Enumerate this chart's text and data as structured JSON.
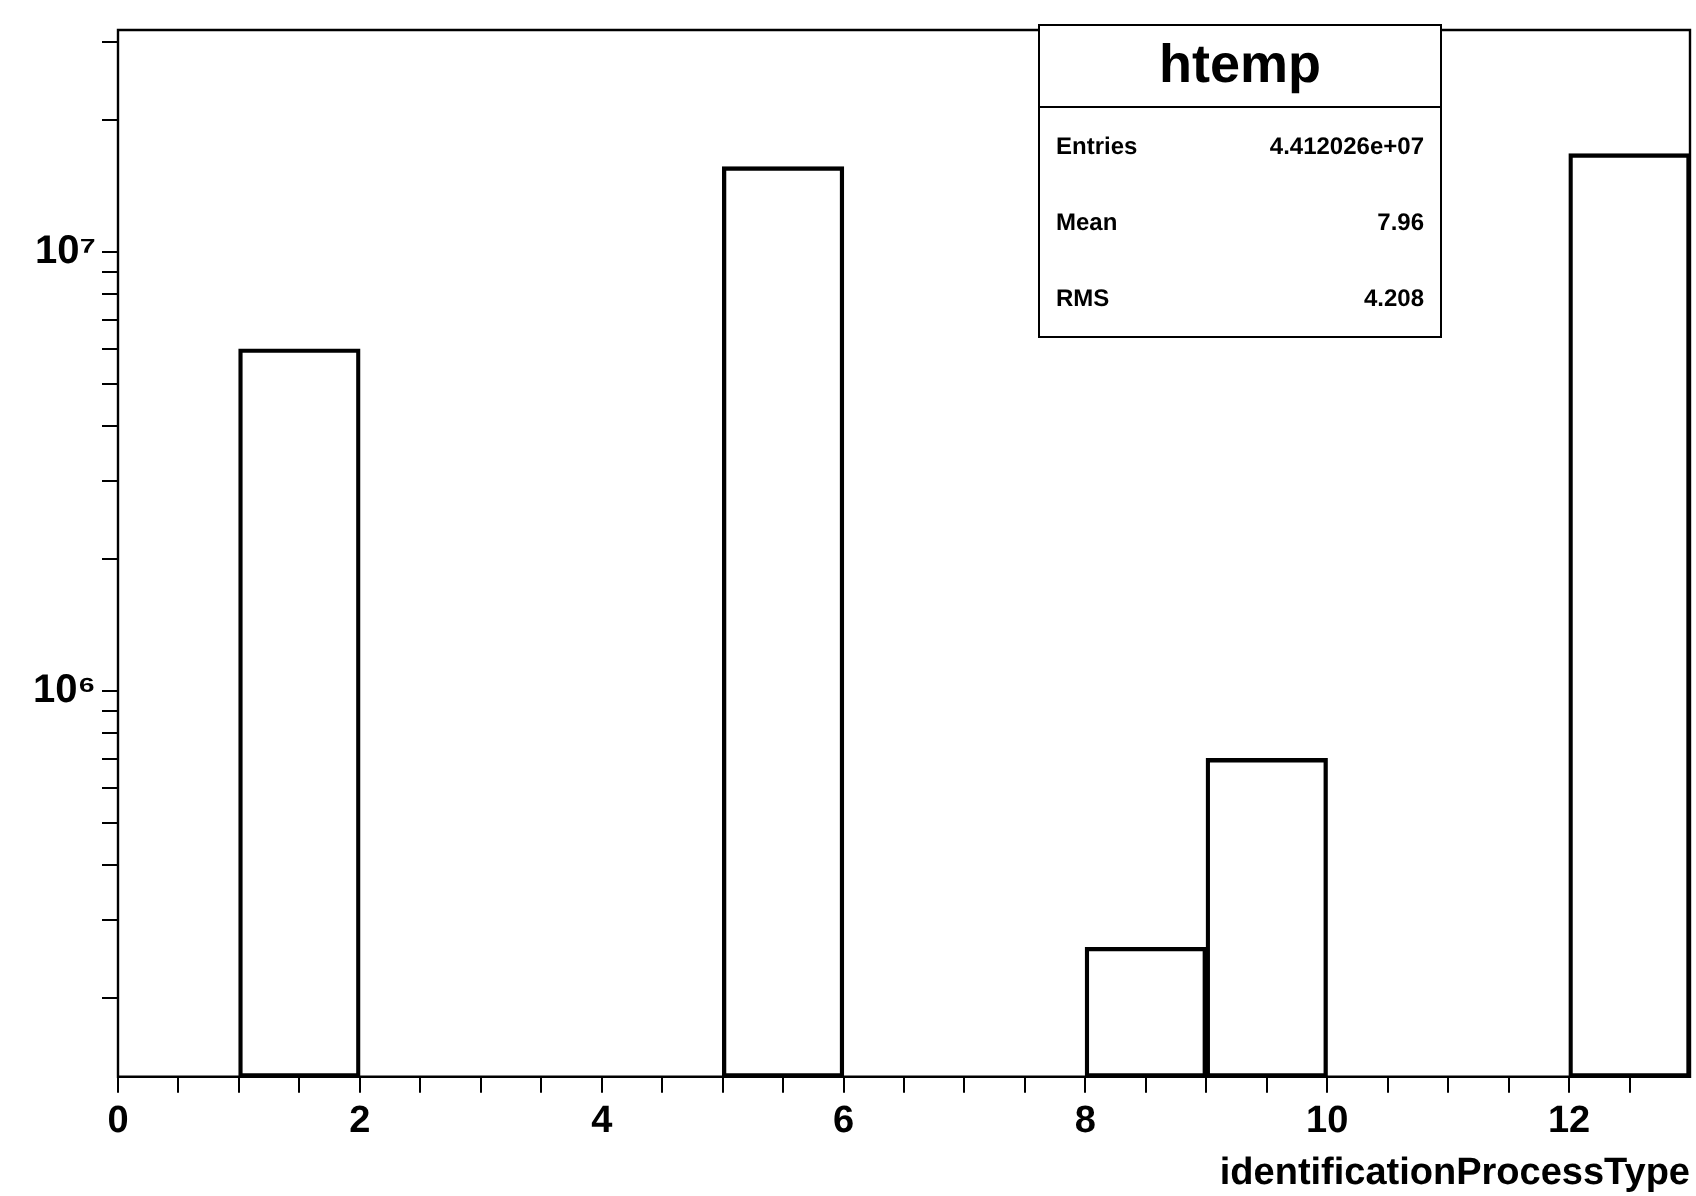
{
  "chart_data": {
    "type": "histogram",
    "bins": [
      0,
      1,
      2,
      3,
      4,
      5,
      6,
      7,
      8,
      9,
      10,
      11,
      12,
      13
    ],
    "values": [
      null,
      6000000,
      null,
      null,
      null,
      15600000,
      null,
      null,
      260000,
      700000,
      null,
      null,
      16700000
    ],
    "color": "#000000",
    "xlabel": "identificationProcessType",
    "xlim": [
      0,
      13
    ],
    "xticks": [
      0,
      {
        "value": 0.5,
        "label": null
      },
      {
        "value": 1,
        "label": null
      },
      {
        "value": 1.5,
        "label": null
      },
      2,
      {
        "value": 2.5,
        "label": null
      },
      {
        "value": 3,
        "label": null
      },
      {
        "value": 3.5,
        "label": null
      },
      4,
      {
        "value": 4.5,
        "label": null
      },
      {
        "value": 5,
        "label": null
      },
      {
        "value": 5.5,
        "label": null
      },
      6,
      {
        "value": 6.5,
        "label": null
      },
      {
        "value": 7,
        "label": null
      },
      {
        "value": 7.5,
        "label": null
      },
      8,
      {
        "value": 8.5,
        "label": null
      },
      {
        "value": 9,
        "label": null
      },
      {
        "value": 9.5,
        "label": null
      },
      10,
      {
        "value": 10.5,
        "label": null
      },
      {
        "value": 11,
        "label": null
      },
      {
        "value": 11.5,
        "label": null
      },
      12,
      {
        "value": 12.5,
        "label": null
      }
    ],
    "ylim": [
      132000,
      32000000
    ],
    "yticks": [
      {
        "value": 200000,
        "label": null
      },
      {
        "value": 300000,
        "label": null
      },
      {
        "value": 400000,
        "label": null
      },
      {
        "value": 500000,
        "label": null
      },
      {
        "value": 600000,
        "label": null
      },
      {
        "value": 700000,
        "label": null
      },
      {
        "value": 800000,
        "label": null
      },
      {
        "value": 900000,
        "label": null
      },
      {
        "value": 1000000,
        "label": "10⁶"
      },
      {
        "value": 2000000,
        "label": null
      },
      {
        "value": 3000000,
        "label": null
      },
      {
        "value": 4000000,
        "label": null
      },
      {
        "value": 5000000,
        "label": null
      },
      {
        "value": 6000000,
        "label": null
      },
      {
        "value": 7000000,
        "label": null
      },
      {
        "value": 8000000,
        "label": null
      },
      {
        "value": 9000000,
        "label": null
      },
      {
        "value": 10000000,
        "label": "10⁷"
      },
      {
        "value": 20000000,
        "label": null
      },
      {
        "value": 30000000,
        "label": null
      }
    ],
    "log": "y",
    "grid": false,
    "legend": false,
    "annotations": [
      "htemp",
      "Entries 4.412026e+07",
      "Mean 7.96",
      "RMS 4.208"
    ]
  }
}
